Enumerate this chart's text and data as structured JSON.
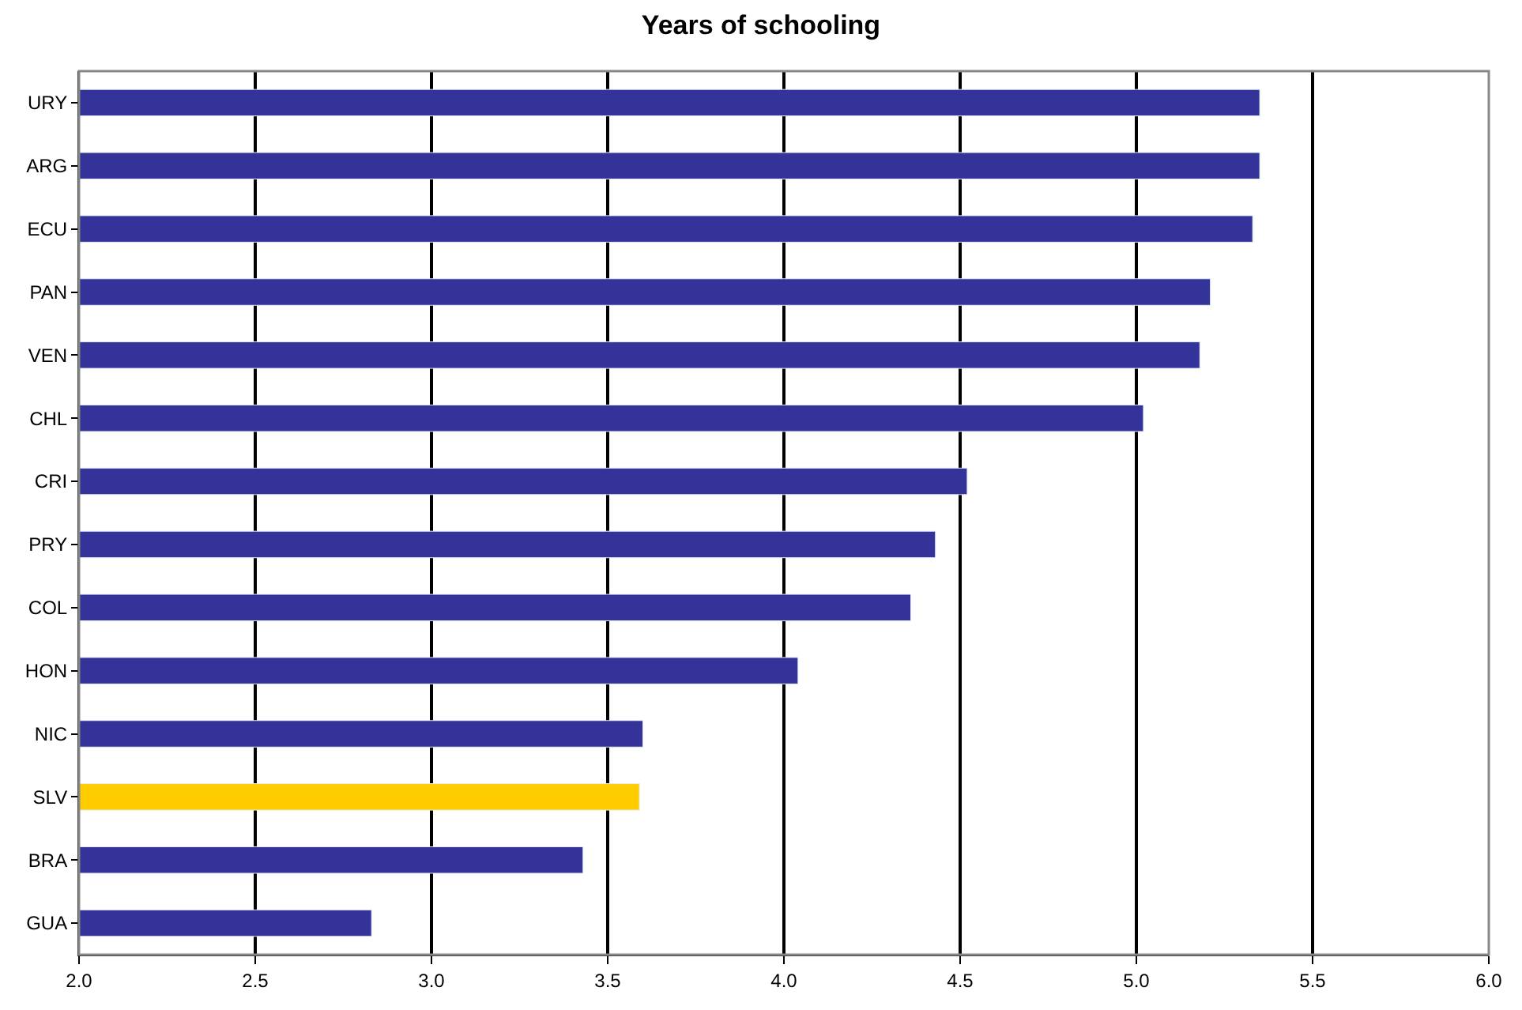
{
  "chart_data": {
    "type": "bar",
    "orientation": "horizontal",
    "title": "Years of schooling",
    "categories": [
      "URY",
      "ARG",
      "ECU",
      "PAN",
      "VEN",
      "CHL",
      "CRI",
      "PRY",
      "COL",
      "HON",
      "NIC",
      "SLV",
      "BRA",
      "GUA"
    ],
    "values": [
      5.35,
      5.35,
      5.33,
      5.21,
      5.18,
      5.02,
      4.52,
      4.43,
      4.36,
      4.04,
      3.6,
      3.59,
      3.43,
      2.83
    ],
    "colors": [
      "#333399",
      "#333399",
      "#333399",
      "#333399",
      "#333399",
      "#333399",
      "#333399",
      "#333399",
      "#333399",
      "#333399",
      "#333399",
      "#ffcc00",
      "#333399",
      "#333399"
    ],
    "xlim": [
      2.0,
      6.0
    ],
    "xticks": [
      {
        "value": 2.0,
        "label": "2.0"
      },
      {
        "value": 2.5,
        "label": "2.5"
      },
      {
        "value": 3.0,
        "label": "3.0"
      },
      {
        "value": 3.5,
        "label": "3.5"
      },
      {
        "value": 4.0,
        "label": "4.0"
      },
      {
        "value": 4.5,
        "label": "4.5"
      },
      {
        "value": 5.0,
        "label": "5.0"
      },
      {
        "value": 5.5,
        "label": "5.5"
      },
      {
        "value": 6.0,
        "label": "6.0"
      }
    ],
    "grid": "x",
    "legend": false
  }
}
